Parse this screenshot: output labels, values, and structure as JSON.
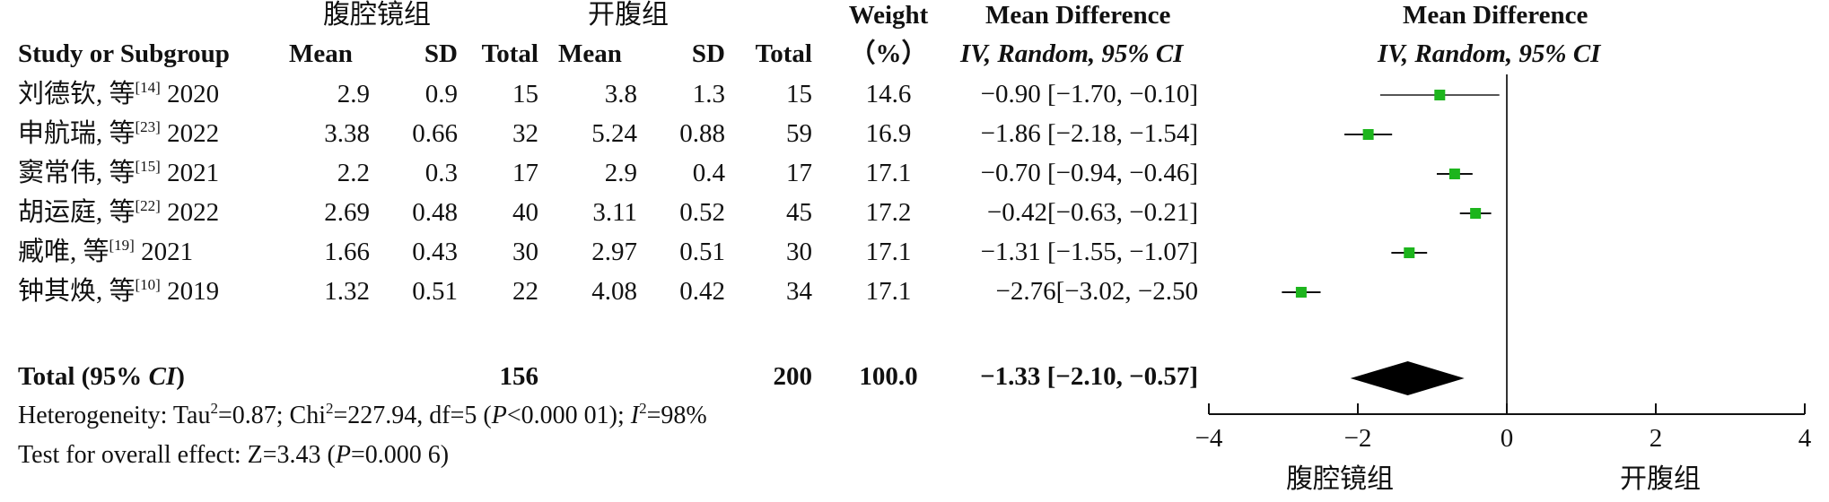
{
  "header": {
    "group_left": "腹腔镜组",
    "group_right": "开腹组",
    "study_col": "Study or Subgroup",
    "mean": "Mean",
    "sd": "SD",
    "total": "Total",
    "weight_top": "Weight",
    "weight_bottom": "（%）",
    "md_top": "Mean Difference",
    "md_bottom": "IV, Random, 95% CI",
    "plot_top": "Mean Difference",
    "plot_bottom": "IV, Random, 95% CI"
  },
  "studies": [
    {
      "author": "刘德钦, 等",
      "ref": "[14]",
      "year": "2020",
      "exp_mean": "2.9",
      "exp_sd": "0.9",
      "exp_total": "15",
      "ctl_mean": "3.8",
      "ctl_sd": "1.3",
      "ctl_total": "15",
      "weight": "14.6",
      "ci_text": "−0.90 [−1.70, −0.10]"
    },
    {
      "author": "申航瑞, 等",
      "ref": "[23]",
      "year": "2022",
      "exp_mean": "3.38",
      "exp_sd": "0.66",
      "exp_total": "32",
      "ctl_mean": "5.24",
      "ctl_sd": "0.88",
      "ctl_total": "59",
      "weight": "16.9",
      "ci_text": "−1.86 [−2.18, −1.54]"
    },
    {
      "author": "窦常伟, 等",
      "ref": "[15]",
      "year": "2021",
      "exp_mean": "2.2",
      "exp_sd": "0.3",
      "exp_total": "17",
      "ctl_mean": "2.9",
      "ctl_sd": "0.4",
      "ctl_total": "17",
      "weight": "17.1",
      "ci_text": "−0.70 [−0.94, −0.46]"
    },
    {
      "author": "胡运庭, 等",
      "ref": "[22]",
      "year": "2022",
      "exp_mean": "2.69",
      "exp_sd": "0.48",
      "exp_total": "40",
      "ctl_mean": "3.11",
      "ctl_sd": "0.52",
      "ctl_total": "45",
      "weight": "17.2",
      "ci_text": "−0.42[−0.63, −0.21]"
    },
    {
      "author": "臧唯, 等",
      "ref": "[19]",
      "year": "2021",
      "exp_mean": "1.66",
      "exp_sd": "0.43",
      "exp_total": "30",
      "ctl_mean": "2.97",
      "ctl_sd": "0.51",
      "ctl_total": "30",
      "weight": "17.1",
      "ci_text": "−1.31 [−1.55, −1.07]"
    },
    {
      "author": "钟其焕, 等",
      "ref": "[10]",
      "year": "2019",
      "exp_mean": "1.32",
      "exp_sd": "0.51",
      "exp_total": "22",
      "ctl_mean": "4.08",
      "ctl_sd": "0.42",
      "ctl_total": "34",
      "weight": "17.1",
      "ci_text": "−2.76[−3.02, −2.50"
    }
  ],
  "total_row": {
    "label_a": "Total (95% ",
    "label_ci": "CI",
    "label_b": ")",
    "exp_total": "156",
    "ctl_total": "200",
    "weight": "100.0",
    "ci_text": "−1.33 [−2.10, −0.57]"
  },
  "footer": {
    "heterogeneity": "Heterogeneity: Tau²=0.87; Chi²=227.94, df=5 (P<0.000 01); I²=98%",
    "overall": "Test for overall effect: Z=3.43 (P=0.000 6)"
  },
  "axis": {
    "left_label": "腹腔镜组",
    "right_label": "开腹组"
  },
  "colors": {
    "marker": "#1db51d",
    "diamond": "#000000",
    "line": "#333333"
  },
  "chart_data": {
    "type": "forest",
    "title": "Mean Difference IV, Random, 95% CI",
    "xlim": [
      -4,
      4
    ],
    "xticks": [
      -4,
      -2,
      0,
      2,
      4
    ],
    "xtick_labels": [
      "−4",
      "−2",
      "0",
      "2",
      "4"
    ],
    "xlabel_left": "腹腔镜组",
    "xlabel_right": "开腹组",
    "categories": [
      "刘德钦, 等 2020",
      "申航瑞, 等 2022",
      "窦常伟, 等 2021",
      "胡运庭, 等 2022",
      "臧唯, 等 2021",
      "钟其焕, 等 2019"
    ],
    "estimates": [
      -0.9,
      -1.86,
      -0.7,
      -0.42,
      -1.31,
      -2.76
    ],
    "ci_low": [
      -1.7,
      -2.18,
      -0.94,
      -0.63,
      -1.55,
      -3.02
    ],
    "ci_high": [
      -0.1,
      -1.54,
      -0.46,
      -0.21,
      -1.07,
      -2.5
    ],
    "weights": [
      14.6,
      16.9,
      17.1,
      17.2,
      17.1,
      17.1
    ],
    "pooled": {
      "estimate": -1.33,
      "ci_low": -2.1,
      "ci_high": -0.57
    }
  }
}
